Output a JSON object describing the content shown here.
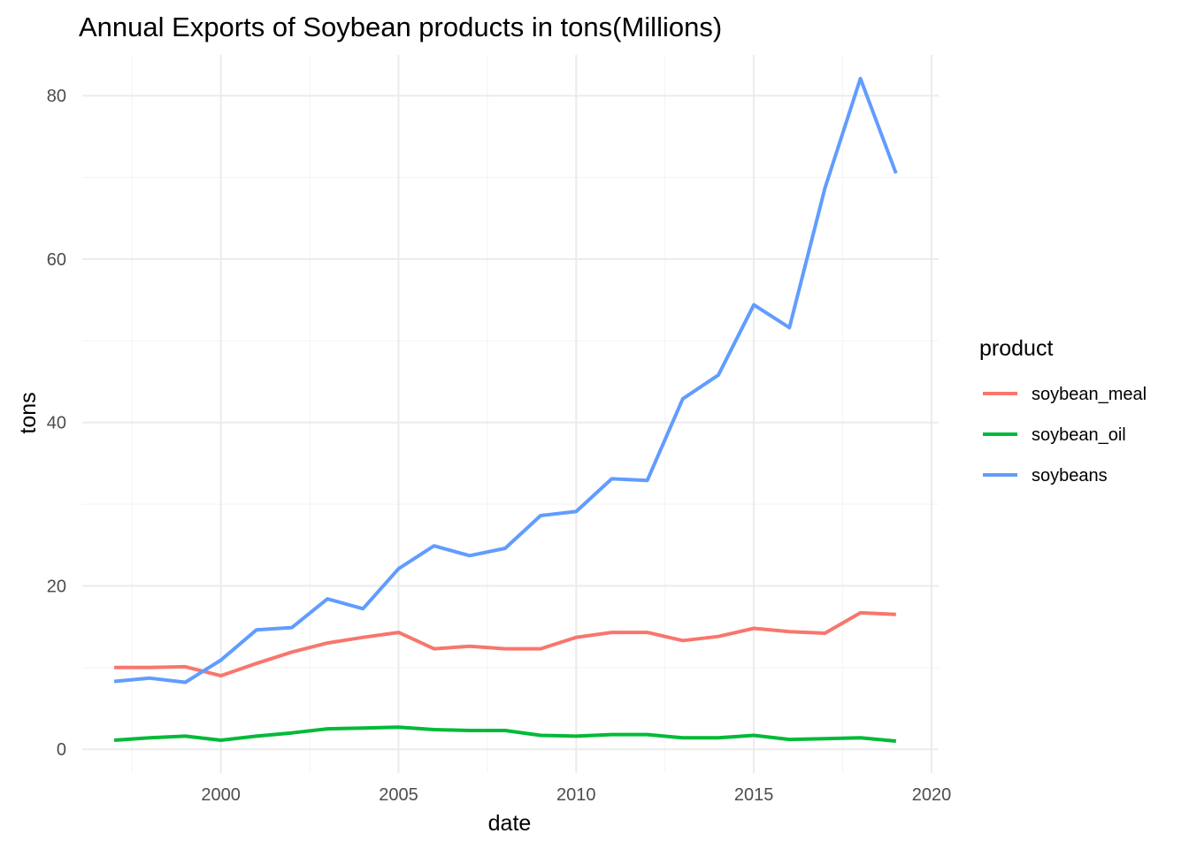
{
  "chart_data": {
    "type": "line",
    "title": "Annual Exports of Soybean products in tons(Millions)",
    "xlabel": "date",
    "ylabel": "tons",
    "xlim": [
      1996.1,
      2020.2
    ],
    "ylim": [
      -2.9,
      85.0
    ],
    "x_ticks": [
      2000,
      2005,
      2010,
      2015,
      2020
    ],
    "y_ticks": [
      0,
      20,
      40,
      60,
      80
    ],
    "grid": true,
    "legend": {
      "title": "product",
      "position": "right"
    },
    "x": [
      1997,
      1998,
      1999,
      2000,
      2001,
      2002,
      2003,
      2004,
      2005,
      2006,
      2007,
      2008,
      2009,
      2010,
      2011,
      2012,
      2013,
      2014,
      2015,
      2016,
      2017,
      2018,
      2019
    ],
    "series": [
      {
        "name": "soybean_meal",
        "color": "#F8766D",
        "values": [
          10.0,
          10.0,
          10.1,
          9.0,
          10.5,
          11.9,
          13.0,
          13.7,
          14.3,
          12.3,
          12.6,
          12.3,
          12.3,
          13.7,
          14.3,
          14.3,
          13.3,
          13.8,
          14.8,
          14.4,
          14.2,
          16.7,
          16.5
        ]
      },
      {
        "name": "soybean_oil",
        "color": "#00BA38",
        "values": [
          1.1,
          1.4,
          1.6,
          1.1,
          1.6,
          2.0,
          2.5,
          2.6,
          2.7,
          2.4,
          2.3,
          2.3,
          1.7,
          1.6,
          1.8,
          1.8,
          1.4,
          1.4,
          1.7,
          1.2,
          1.3,
          1.4,
          1.0
        ]
      },
      {
        "name": "soybeans",
        "color": "#619CFF",
        "values": [
          8.3,
          8.7,
          8.2,
          10.9,
          14.6,
          14.9,
          18.4,
          17.2,
          22.1,
          24.9,
          23.7,
          24.6,
          28.6,
          29.1,
          33.1,
          32.9,
          42.9,
          45.8,
          54.4,
          51.6,
          68.7,
          82.1,
          70.5
        ]
      }
    ]
  }
}
